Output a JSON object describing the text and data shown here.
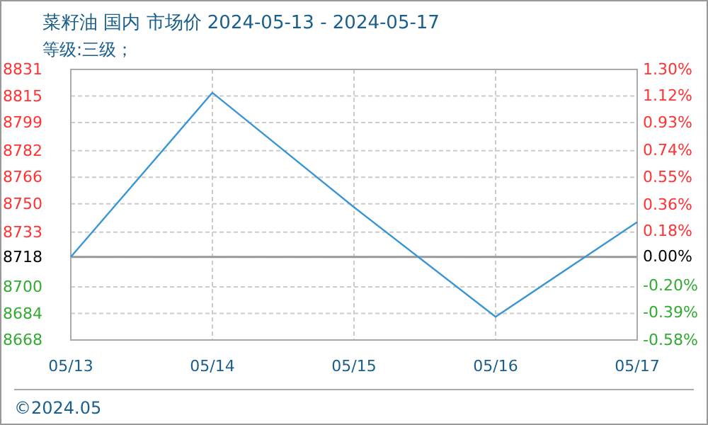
{
  "chart_data": {
    "type": "line",
    "title": "菜籽油 国内 市场价 2024-05-13 - 2024-05-17",
    "subtitle": "等级:三级；",
    "categories": [
      "05/13",
      "05/14",
      "05/15",
      "05/16",
      "05/17"
    ],
    "series": [
      {
        "color": "#3a95d5",
        "values": [
          8718,
          8817,
          8748,
          8682,
          8739
        ]
      }
    ],
    "ylim": [
      8668,
      8831
    ],
    "yticks": [
      8668,
      8684,
      8700,
      8718,
      8733,
      8750,
      8766,
      8782,
      8799,
      8815,
      8831
    ],
    "y2lim": [
      -0.58,
      1.3
    ],
    "y2ticks": [
      {
        "value": -0.58,
        "label": "-0.58%"
      },
      {
        "value": -0.39,
        "label": "-0.39%"
      },
      {
        "value": -0.2,
        "label": "-0.20%"
      },
      {
        "value": 0,
        "label": "0.00%"
      },
      {
        "value": 0.18,
        "label": "0.18%"
      },
      {
        "value": 0.36,
        "label": "0.36%"
      },
      {
        "value": 0.55,
        "label": "0.55%"
      },
      {
        "value": 0.74,
        "label": "0.74%"
      },
      {
        "value": 0.93,
        "label": "0.93%"
      },
      {
        "value": 1.12,
        "label": "1.12%"
      },
      {
        "value": 1.3,
        "label": "1.30%"
      }
    ],
    "ref_lines": [
      {
        "axis": "y",
        "value": 8718,
        "color": "#999999"
      }
    ],
    "grid": true,
    "marker": "none",
    "line_style": "solid",
    "annotations": [
      "©2024.05"
    ]
  }
}
